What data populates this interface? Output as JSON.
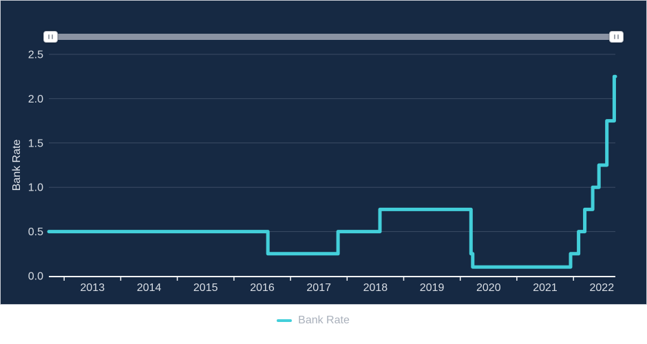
{
  "legend": {
    "label": "Bank Rate"
  },
  "navigator": {
    "handle_glyph": "||"
  },
  "colors": {
    "panel_bg": "#162943",
    "panel_border": "#c9cdd5",
    "line": "#43cfda",
    "grid": "#6b7890",
    "axis": "#f4f6f8",
    "tick_label": "#d9dee5",
    "axis_title": "#e4e8ee",
    "legend_text": "#a9b0bb",
    "nav_track": "#8b93a3"
  },
  "chart_data": {
    "type": "line",
    "step": true,
    "title": "",
    "xlabel": "",
    "ylabel": "Bank Rate",
    "x_ticks": [
      2013,
      2014,
      2015,
      2016,
      2017,
      2018,
      2019,
      2020,
      2021,
      2022
    ],
    "y_ticks": [
      0.0,
      0.5,
      1.0,
      1.5,
      2.0,
      2.5
    ],
    "xlim": [
      2012.73,
      2022.74
    ],
    "ylim": [
      0,
      2.5
    ],
    "grid": "horizontal",
    "legend_position": "bottom",
    "point_format": "[decimal_year_of_change, new_rate_percent] - rate holds until next change (step-after)",
    "series": [
      {
        "name": "Bank Rate",
        "points": [
          [
            2012.73,
            0.5
          ],
          [
            2016.6,
            0.25
          ],
          [
            2017.84,
            0.5
          ],
          [
            2018.58,
            0.75
          ],
          [
            2020.19,
            0.25
          ],
          [
            2020.22,
            0.1
          ],
          [
            2021.95,
            0.25
          ],
          [
            2022.09,
            0.5
          ],
          [
            2022.2,
            0.75
          ],
          [
            2022.34,
            1.0
          ],
          [
            2022.45,
            1.25
          ],
          [
            2022.59,
            1.75
          ],
          [
            2022.72,
            2.25
          ],
          [
            2022.74,
            2.25
          ]
        ]
      }
    ]
  }
}
